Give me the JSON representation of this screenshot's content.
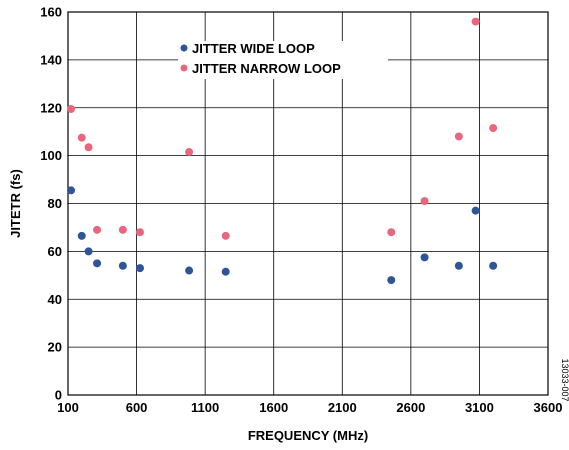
{
  "chart_data": {
    "type": "scatter",
    "xlabel": "FREQUENCY (MHz)",
    "ylabel": "JITETR (fs)",
    "xlim": [
      100,
      3600
    ],
    "ylim": [
      0,
      160
    ],
    "x_ticks": [
      100,
      600,
      1100,
      1600,
      2100,
      2600,
      3100,
      3600
    ],
    "y_ticks": [
      0,
      20,
      40,
      60,
      80,
      100,
      120,
      140,
      160
    ],
    "grid": true,
    "legend_position": "top-center",
    "figure_id": "13033-007",
    "series": [
      {
        "name": "JITTER WIDE LOOP",
        "color": "#2f5597",
        "points": [
          {
            "x": 122,
            "y": 85.5
          },
          {
            "x": 200,
            "y": 66.5
          },
          {
            "x": 250,
            "y": 60
          },
          {
            "x": 312,
            "y": 55
          },
          {
            "x": 500,
            "y": 54
          },
          {
            "x": 625,
            "y": 53
          },
          {
            "x": 983,
            "y": 52
          },
          {
            "x": 1250,
            "y": 51.5
          },
          {
            "x": 2457,
            "y": 48
          },
          {
            "x": 2700,
            "y": 57.5
          },
          {
            "x": 2950,
            "y": 54
          },
          {
            "x": 3072,
            "y": 77
          },
          {
            "x": 3200,
            "y": 54
          }
        ]
      },
      {
        "name": "JITTER NARROW LOOP",
        "color": "#e8667e",
        "points": [
          {
            "x": 122,
            "y": 119.5
          },
          {
            "x": 200,
            "y": 107.5
          },
          {
            "x": 250,
            "y": 103.5
          },
          {
            "x": 312,
            "y": 69
          },
          {
            "x": 500,
            "y": 69
          },
          {
            "x": 625,
            "y": 68
          },
          {
            "x": 983,
            "y": 101.5
          },
          {
            "x": 1250,
            "y": 66.5
          },
          {
            "x": 2457,
            "y": 68
          },
          {
            "x": 2700,
            "y": 81
          },
          {
            "x": 2950,
            "y": 108
          },
          {
            "x": 3072,
            "y": 156
          },
          {
            "x": 3200,
            "y": 111.5
          }
        ]
      }
    ]
  }
}
